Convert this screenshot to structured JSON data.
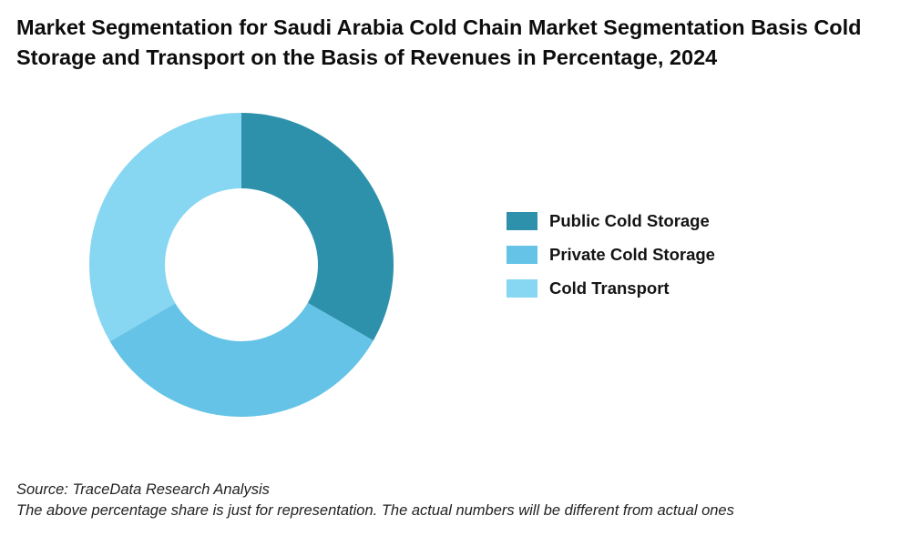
{
  "chart_data": {
    "type": "pie",
    "donut": true,
    "title": "Market Segmentation for Saudi Arabia Cold Chain Market Segmentation Basis Cold Storage and Transport on the Basis of Revenues in Percentage, 2024",
    "categories": [
      "Public Cold Storage",
      "Private Cold Storage",
      "Cold Transport"
    ],
    "values": [
      33.3,
      33.3,
      33.4
    ],
    "colors": [
      "#2e91ab",
      "#64c3e6",
      "#87d6f2"
    ],
    "legend_position": "right"
  },
  "source": "Source: TraceData Research Analysis",
  "note": "The above percentage share is just for representation. The actual numbers will be different from actual ones"
}
